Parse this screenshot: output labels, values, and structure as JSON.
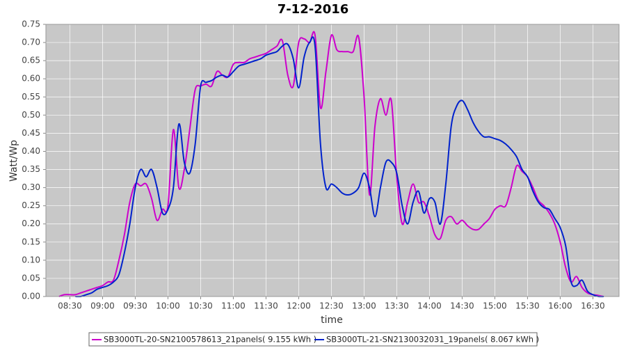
{
  "chart_data": {
    "type": "line",
    "title": "7-12-2016",
    "x_label": "time",
    "y_label": "Watt/Wp",
    "x": [
      "08:20",
      "08:25",
      "08:30",
      "08:35",
      "08:40",
      "08:45",
      "08:50",
      "08:55",
      "09:00",
      "09:05",
      "09:10",
      "09:15",
      "09:20",
      "09:25",
      "09:30",
      "09:35",
      "09:40",
      "09:45",
      "09:50",
      "09:55",
      "10:00",
      "10:05",
      "10:10",
      "10:15",
      "10:20",
      "10:25",
      "10:30",
      "10:35",
      "10:40",
      "10:45",
      "10:50",
      "10:55",
      "11:00",
      "11:05",
      "11:10",
      "11:15",
      "11:20",
      "11:25",
      "11:30",
      "11:35",
      "11:40",
      "11:45",
      "11:50",
      "11:55",
      "12:00",
      "12:05",
      "12:10",
      "12:15",
      "12:20",
      "12:25",
      "12:30",
      "12:35",
      "12:40",
      "12:45",
      "12:50",
      "12:55",
      "13:00",
      "13:05",
      "13:10",
      "13:15",
      "13:20",
      "13:25",
      "13:30",
      "13:35",
      "13:40",
      "13:45",
      "13:50",
      "13:55",
      "14:00",
      "14:05",
      "14:10",
      "14:15",
      "14:20",
      "14:25",
      "14:30",
      "14:35",
      "14:40",
      "14:45",
      "14:50",
      "14:55",
      "15:00",
      "15:05",
      "15:10",
      "15:15",
      "15:20",
      "15:25",
      "15:30",
      "15:35",
      "15:40",
      "15:45",
      "15:50",
      "15:55",
      "16:00",
      "16:05",
      "16:10",
      "16:15",
      "16:20",
      "16:25",
      "16:30",
      "16:35",
      "16:40"
    ],
    "series": [
      {
        "name": "SB3000TL-20-SN2100578613_21panels( 9.155 kWh )",
        "color": "#cc00cc",
        "values": [
          0,
          0.005,
          0.005,
          0.005,
          0.01,
          0.015,
          0.02,
          0.025,
          0.03,
          0.04,
          0.045,
          0.1,
          0.17,
          0.26,
          0.31,
          0.305,
          0.31,
          0.27,
          0.21,
          0.24,
          0.25,
          0.46,
          0.3,
          0.35,
          0.46,
          0.57,
          0.58,
          0.585,
          0.58,
          0.62,
          0.61,
          0.605,
          0.64,
          0.645,
          0.645,
          0.655,
          0.66,
          0.665,
          0.67,
          0.68,
          0.69,
          0.705,
          0.61,
          0.58,
          0.7,
          0.71,
          0.7,
          0.72,
          0.52,
          0.62,
          0.72,
          0.68,
          0.675,
          0.675,
          0.675,
          0.715,
          0.55,
          0.28,
          0.47,
          0.545,
          0.5,
          0.54,
          0.33,
          0.2,
          0.26,
          0.31,
          0.26,
          0.26,
          0.22,
          0.17,
          0.16,
          0.21,
          0.22,
          0.2,
          0.21,
          0.195,
          0.185,
          0.185,
          0.2,
          0.215,
          0.24,
          0.25,
          0.25,
          0.3,
          0.36,
          0.345,
          0.33,
          0.3,
          0.265,
          0.25,
          0.23,
          0.2,
          0.15,
          0.08,
          0.04,
          0.055,
          0.025,
          0.01,
          0.005,
          0.003,
          0
        ]
      },
      {
        "name": "SB3000TL-21-SN2130032031_19panels( 8.067 kWh )",
        "color": "#0022cc",
        "values": [
          null,
          null,
          null,
          0,
          0,
          0.005,
          0.01,
          0.02,
          0.025,
          0.03,
          0.04,
          0.06,
          0.12,
          0.2,
          0.3,
          0.35,
          0.33,
          0.35,
          0.3,
          0.23,
          0.24,
          0.3,
          0.475,
          0.37,
          0.34,
          0.42,
          0.58,
          0.59,
          0.595,
          0.605,
          0.61,
          0.605,
          0.62,
          0.635,
          0.64,
          0.645,
          0.65,
          0.655,
          0.665,
          0.67,
          0.675,
          0.69,
          0.695,
          0.655,
          0.575,
          0.66,
          0.7,
          0.69,
          0.42,
          0.3,
          0.31,
          0.3,
          0.285,
          0.28,
          0.285,
          0.3,
          0.34,
          0.3,
          0.22,
          0.3,
          0.37,
          0.37,
          0.34,
          0.25,
          0.2,
          0.26,
          0.29,
          0.23,
          0.27,
          0.26,
          0.2,
          0.31,
          0.47,
          0.525,
          0.54,
          0.515,
          0.48,
          0.455,
          0.44,
          0.44,
          0.435,
          0.43,
          0.42,
          0.405,
          0.385,
          0.35,
          0.33,
          0.29,
          0.26,
          0.245,
          0.24,
          0.215,
          0.19,
          0.14,
          0.04,
          0.03,
          0.045,
          0.015,
          0.005,
          0,
          0
        ]
      }
    ],
    "xlim": [
      "08:08",
      "16:54"
    ],
    "xticks": [
      "08:30",
      "09:00",
      "09:30",
      "10:00",
      "10:30",
      "11:00",
      "11:30",
      "12:00",
      "12:30",
      "13:00",
      "13:30",
      "14:00",
      "14:30",
      "15:00",
      "15:30",
      "16:00",
      "16:30"
    ],
    "ylim": [
      0,
      0.75
    ],
    "yticks": [
      {
        "value": 0,
        "label": "0.00"
      },
      {
        "value": 0.05,
        "label": "0.05"
      },
      {
        "value": 0.1,
        "label": "0.10"
      },
      {
        "value": 0.15,
        "label": "0.15"
      },
      {
        "value": 0.2,
        "label": "0.20"
      },
      {
        "value": 0.25,
        "label": "0.25"
      },
      {
        "value": 0.3,
        "label": "0.30"
      },
      {
        "value": 0.35,
        "label": "0.35"
      },
      {
        "value": 0.4,
        "label": "0.40"
      },
      {
        "value": 0.45,
        "label": "0.45"
      },
      {
        "value": 0.5,
        "label": "0.50"
      },
      {
        "value": 0.55,
        "label": "0.55"
      },
      {
        "value": 0.6,
        "label": "0.60"
      },
      {
        "value": 0.65,
        "label": "0.65"
      },
      {
        "value": 0.7,
        "label": "0.70"
      },
      {
        "value": 0.75,
        "label": "0.75"
      }
    ],
    "grid": true,
    "legend": "bottom"
  }
}
